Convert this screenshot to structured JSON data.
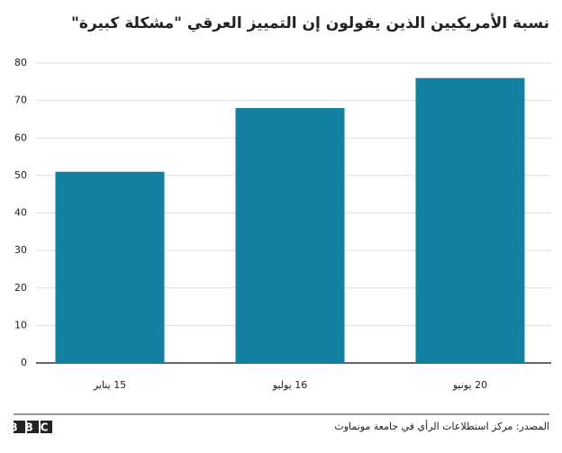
{
  "chart_data": {
    "type": "bar",
    "title": "نسبة الأمريكيين الذين يقولون إن التمييز العرقي \"مشكلة كبيرة\"",
    "categories": [
      "15 يناير",
      "16 يوليو",
      "20 يونيو"
    ],
    "values": [
      51,
      68,
      76
    ],
    "color": "#1380a1",
    "ylim": [
      0,
      80
    ],
    "yticks": [
      0,
      10,
      20,
      30,
      40,
      50,
      60,
      70,
      80
    ],
    "grid": true,
    "source": "المصدر: مركز استطلاعات الرأي في جامعة مونماوث",
    "logo": "BBC"
  }
}
